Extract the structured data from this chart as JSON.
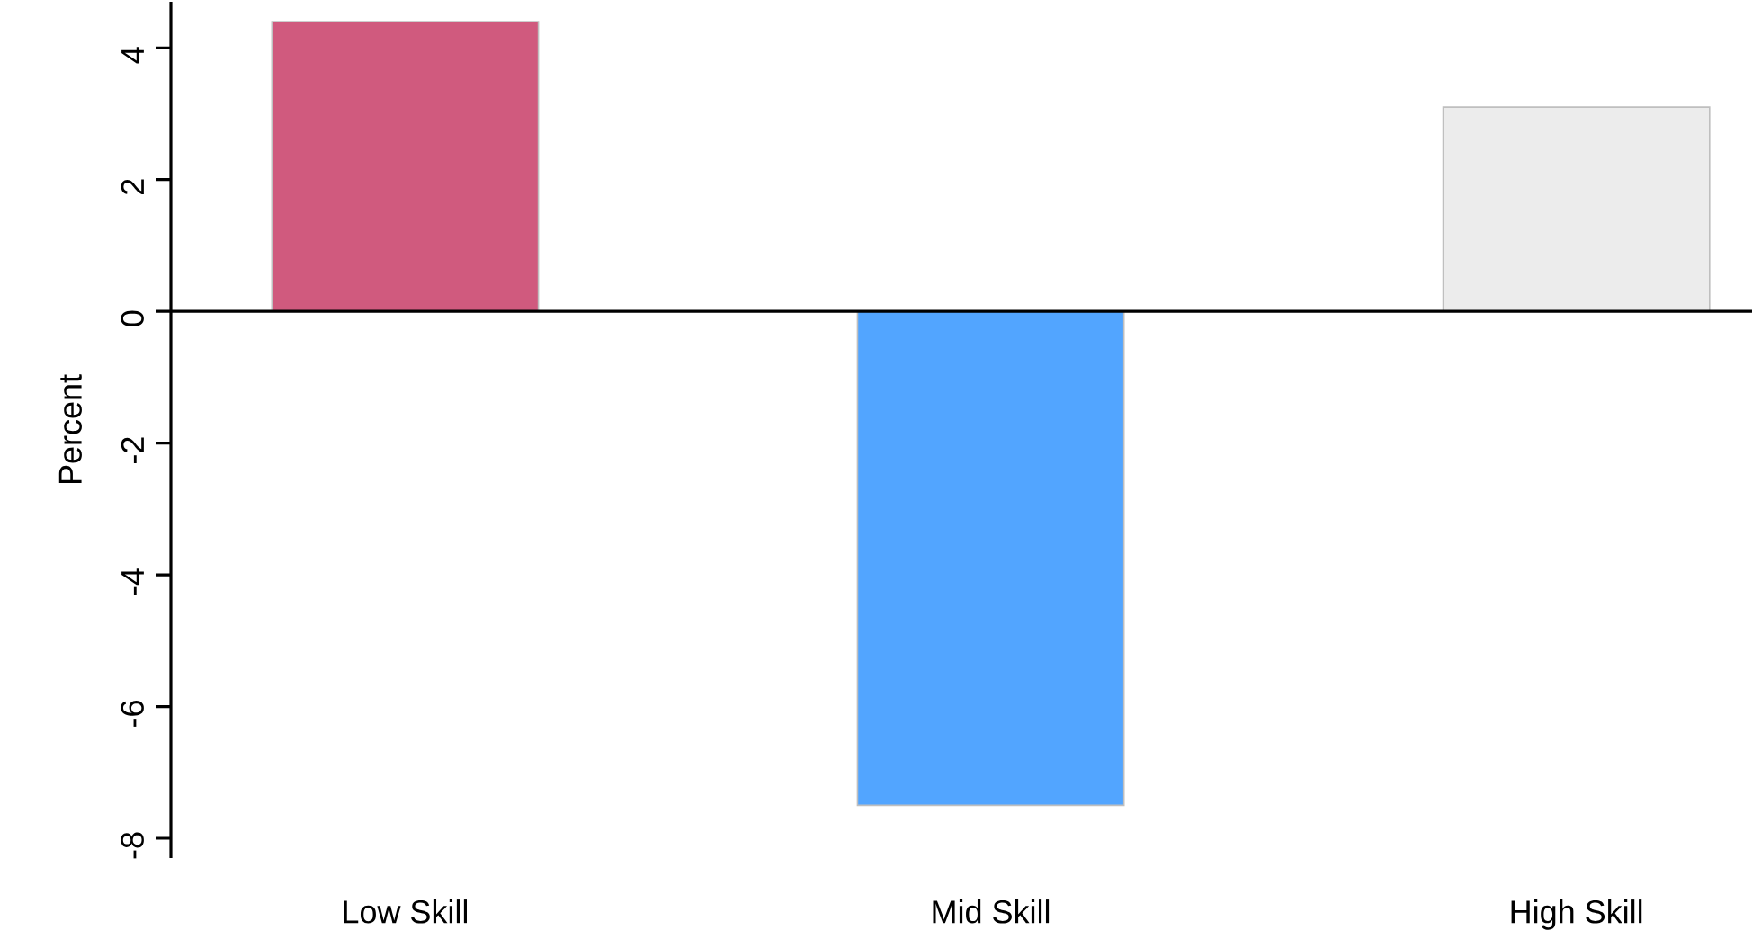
{
  "chart_data": {
    "type": "bar",
    "ylabel": "Percent",
    "categories": [
      "Low Skill",
      "Mid Skill",
      "High Skill"
    ],
    "values": [
      4.4,
      -7.5,
      3.1
    ],
    "colors": [
      "#d05a7e",
      "#52a5ff",
      "#ececec"
    ],
    "ylim": [
      -8.3,
      4.7
    ],
    "yticks": [
      -8,
      -6,
      -4,
      -2,
      0,
      2,
      4
    ],
    "ref_lines": [
      {
        "axis": "y",
        "value": 0,
        "color": "#000000"
      }
    ]
  }
}
